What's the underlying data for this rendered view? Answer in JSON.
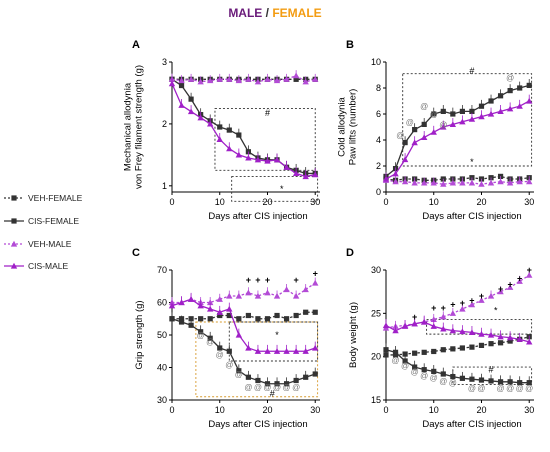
{
  "header": {
    "male": "MALE",
    "slash": "/",
    "female": "FEMALE"
  },
  "legend": [
    {
      "key": "veh_female",
      "label": "VEH-FEMALE",
      "color": "#333333",
      "marker": "square",
      "dashed": true
    },
    {
      "key": "cis_female",
      "label": "CIS-FEMALE",
      "color": "#333333",
      "marker": "square",
      "dashed": false
    },
    {
      "key": "veh_male",
      "label": "VEH-MALE",
      "color": "#b34bd6",
      "marker": "triangle",
      "dashed": true
    },
    {
      "key": "cis_male",
      "label": "CIS-MALE",
      "color": "#a020c8",
      "marker": "triangle",
      "dashed": false
    }
  ],
  "colors": {
    "female": "#333333",
    "male_veh": "#b34bd6",
    "male_cis": "#a020c8",
    "box_female": "#d79b2e"
  },
  "chart_data": [
    {
      "panel": "A",
      "type": "line",
      "ylabel": "Mechanical allodynia\nvon Frey filament strength (g)",
      "xlabel": "Days after CIS injection",
      "xlim": [
        0,
        31
      ],
      "ylim": [
        0.9,
        3.0
      ],
      "xticks": [
        0,
        10,
        20,
        30
      ],
      "yticks": [
        1,
        2,
        3
      ],
      "series": [
        {
          "key": "veh_female",
          "x": [
            0,
            2,
            4,
            6,
            8,
            10,
            12,
            14,
            16,
            18,
            20,
            22,
            24,
            26,
            28,
            30
          ],
          "values": [
            2.72,
            2.72,
            2.72,
            2.72,
            2.72,
            2.72,
            2.72,
            2.72,
            2.72,
            2.72,
            2.72,
            2.72,
            2.72,
            2.72,
            2.72,
            2.72
          ]
        },
        {
          "key": "cis_female",
          "x": [
            0,
            2,
            4,
            6,
            8,
            10,
            12,
            14,
            16,
            18,
            20,
            22,
            24,
            26,
            28,
            30
          ],
          "values": [
            2.72,
            2.62,
            2.4,
            2.15,
            2.05,
            1.95,
            1.9,
            1.82,
            1.55,
            1.45,
            1.42,
            1.42,
            1.3,
            1.25,
            1.2,
            1.2
          ]
        },
        {
          "key": "veh_male",
          "x": [
            0,
            2,
            4,
            6,
            8,
            10,
            12,
            14,
            16,
            18,
            20,
            22,
            24,
            26,
            28,
            30
          ],
          "values": [
            2.72,
            2.7,
            2.72,
            2.68,
            2.7,
            2.72,
            2.72,
            2.7,
            2.72,
            2.68,
            2.72,
            2.7,
            2.72,
            2.78,
            2.68,
            2.72
          ]
        },
        {
          "key": "cis_male",
          "x": [
            0,
            2,
            4,
            6,
            8,
            10,
            12,
            14,
            16,
            18,
            20,
            22,
            24,
            26,
            28,
            30
          ],
          "values": [
            2.65,
            2.3,
            2.2,
            2.1,
            2.0,
            1.75,
            1.6,
            1.5,
            1.45,
            1.42,
            1.4,
            1.42,
            1.3,
            1.2,
            1.15,
            1.18
          ]
        }
      ],
      "annotations": [
        {
          "text": "#",
          "x": 20,
          "y": 2.18
        },
        {
          "text": "*",
          "x": 23,
          "y": 0.95
        }
      ],
      "boxes": [
        {
          "x": [
            9,
            30
          ],
          "y": [
            1.25,
            2.25
          ]
        },
        {
          "x": [
            12.5,
            30.5
          ],
          "y": [
            0.75,
            1.15
          ]
        }
      ]
    },
    {
      "panel": "B",
      "type": "line",
      "ylabel": "Cold allodynia\nPaw lifts (number)",
      "xlabel": "Days after CIS injection",
      "xlim": [
        0,
        31
      ],
      "ylim": [
        0,
        10
      ],
      "xticks": [
        0,
        10,
        20,
        30
      ],
      "yticks": [
        0,
        2,
        4,
        6,
        8,
        10
      ],
      "series": [
        {
          "key": "veh_female",
          "x": [
            0,
            2,
            4,
            6,
            8,
            10,
            12,
            14,
            16,
            18,
            20,
            22,
            24,
            26,
            28,
            30
          ],
          "values": [
            1.0,
            0.9,
            1.0,
            1.0,
            0.9,
            0.9,
            1.0,
            1.0,
            1.0,
            1.1,
            1.0,
            1.1,
            1.2,
            1.0,
            1.0,
            1.1
          ]
        },
        {
          "key": "cis_female",
          "x": [
            0,
            2,
            4,
            6,
            8,
            10,
            12,
            14,
            16,
            18,
            20,
            22,
            24,
            26,
            28,
            30
          ],
          "values": [
            1.2,
            1.8,
            3.8,
            4.8,
            5.2,
            6.0,
            6.2,
            6.0,
            6.2,
            6.2,
            6.6,
            7.0,
            7.4,
            7.8,
            8.0,
            8.2
          ]
        },
        {
          "key": "veh_male",
          "x": [
            0,
            2,
            4,
            6,
            8,
            10,
            12,
            14,
            16,
            18,
            20,
            22,
            24,
            26,
            28,
            30
          ],
          "values": [
            0.9,
            0.8,
            0.8,
            0.7,
            0.7,
            0.7,
            0.6,
            0.7,
            0.7,
            0.7,
            0.6,
            0.7,
            0.8,
            0.7,
            0.8,
            0.8
          ]
        },
        {
          "key": "cis_male",
          "x": [
            0,
            2,
            4,
            6,
            8,
            10,
            12,
            14,
            16,
            18,
            20,
            22,
            24,
            26,
            28,
            30
          ],
          "values": [
            1.0,
            1.4,
            2.5,
            3.8,
            4.2,
            4.6,
            5.0,
            5.2,
            5.4,
            5.6,
            5.8,
            6.0,
            6.2,
            6.4,
            6.6,
            7.0
          ]
        }
      ],
      "annotations": [
        {
          "text": "#",
          "x": 18,
          "y": 9.3
        },
        {
          "text": "*",
          "x": 18,
          "y": 2.3
        },
        {
          "text": "@",
          "x": 3,
          "y": 4.4
        },
        {
          "text": "@",
          "x": 5,
          "y": 5.4
        },
        {
          "text": "@",
          "x": 8,
          "y": 6.6
        },
        {
          "text": "@",
          "x": 10,
          "y": 6.0
        },
        {
          "text": "@",
          "x": 12,
          "y": 5.2
        },
        {
          "text": "@",
          "x": 26,
          "y": 8.8
        }
      ],
      "boxes": [
        {
          "x": [
            3.5,
            30.5
          ],
          "y": [
            2.0,
            9.1
          ]
        }
      ]
    },
    {
      "panel": "C",
      "type": "line",
      "ylabel": "Grip strength (g)",
      "xlabel": "Days after CIS injection",
      "xlim": [
        0,
        31
      ],
      "ylim": [
        30,
        70
      ],
      "xticks": [
        0,
        10,
        20,
        30
      ],
      "yticks": [
        30,
        40,
        50,
        60,
        70
      ],
      "series": [
        {
          "key": "veh_female",
          "x": [
            0,
            2,
            4,
            6,
            8,
            10,
            12,
            14,
            16,
            18,
            20,
            22,
            24,
            26,
            28,
            30
          ],
          "values": [
            55,
            55,
            55,
            55,
            55,
            56,
            56,
            55,
            56,
            55,
            55,
            56,
            55,
            56,
            57,
            57
          ]
        },
        {
          "key": "cis_female",
          "x": [
            0,
            2,
            4,
            6,
            8,
            10,
            12,
            14,
            16,
            18,
            20,
            22,
            24,
            26,
            28,
            30
          ],
          "values": [
            55,
            54,
            53,
            51,
            49,
            46,
            45,
            39,
            37,
            36,
            35,
            35,
            35,
            36,
            37,
            38
          ]
        },
        {
          "key": "veh_male",
          "x": [
            0,
            2,
            4,
            6,
            8,
            10,
            12,
            14,
            16,
            18,
            20,
            22,
            24,
            26,
            28,
            30
          ],
          "values": [
            60,
            60,
            61,
            60,
            60,
            61,
            62,
            62,
            63,
            62,
            63,
            62,
            64,
            62,
            64,
            66
          ]
        },
        {
          "key": "cis_male",
          "x": [
            0,
            2,
            4,
            6,
            8,
            10,
            12,
            14,
            16,
            18,
            20,
            22,
            24,
            26,
            28,
            30
          ],
          "values": [
            59,
            60,
            61,
            59,
            58,
            57,
            58,
            50,
            46,
            45,
            45,
            45,
            45,
            45,
            45,
            46
          ]
        }
      ],
      "annotations": [
        {
          "text": "*",
          "x": 22,
          "y": 50
        },
        {
          "text": "#",
          "x": 21,
          "y": 32
        },
        {
          "text": "+",
          "x": 16,
          "y": 67
        },
        {
          "text": "+",
          "x": 18,
          "y": 67
        },
        {
          "text": "+",
          "x": 20,
          "y": 67
        },
        {
          "text": "+",
          "x": 26,
          "y": 67
        },
        {
          "text": "+",
          "x": 30,
          "y": 69
        },
        {
          "text": "@",
          "x": 6,
          "y": 50
        },
        {
          "text": "@",
          "x": 8,
          "y": 48
        },
        {
          "text": "@",
          "x": 10,
          "y": 44
        },
        {
          "text": "@",
          "x": 12,
          "y": 41
        },
        {
          "text": "@",
          "x": 14,
          "y": 38
        },
        {
          "text": "@",
          "x": 16,
          "y": 34
        },
        {
          "text": "@",
          "x": 18,
          "y": 34
        },
        {
          "text": "@",
          "x": 20,
          "y": 34
        },
        {
          "text": "@",
          "x": 22,
          "y": 34
        },
        {
          "text": "@",
          "x": 24,
          "y": 34
        },
        {
          "text": "@",
          "x": 26,
          "y": 34
        }
      ],
      "boxes": [
        {
          "x": [
            5,
            30.5
          ],
          "y": [
            31,
            54
          ],
          "color_key": "box_female"
        },
        {
          "x": [
            12,
            30.5
          ],
          "y": [
            42,
            54
          ]
        }
      ]
    },
    {
      "panel": "D",
      "type": "line",
      "ylabel": "Body weight (g)",
      "xlabel": "Days after CIS injection",
      "xlim": [
        0,
        31
      ],
      "ylim": [
        15,
        30
      ],
      "xticks": [
        0,
        10,
        20,
        30
      ],
      "yticks": [
        15,
        20,
        25,
        30
      ],
      "series": [
        {
          "key": "veh_female",
          "x": [
            0,
            2,
            4,
            6,
            8,
            10,
            12,
            14,
            16,
            18,
            20,
            22,
            24,
            26,
            28,
            30
          ],
          "values": [
            20.2,
            20.2,
            20.3,
            20.4,
            20.5,
            20.6,
            20.8,
            20.9,
            21.0,
            21.1,
            21.3,
            21.5,
            21.6,
            21.8,
            22.0,
            22.3
          ]
        },
        {
          "key": "cis_female",
          "x": [
            0,
            2,
            4,
            6,
            8,
            10,
            12,
            14,
            16,
            18,
            20,
            22,
            24,
            26,
            28,
            30
          ],
          "values": [
            20.8,
            20.5,
            19.5,
            18.8,
            18.5,
            18.3,
            18.0,
            17.7,
            17.5,
            17.4,
            17.3,
            17.2,
            17.1,
            17.1,
            17.0,
            17.0
          ]
        },
        {
          "key": "veh_male",
          "x": [
            0,
            2,
            4,
            6,
            8,
            10,
            12,
            14,
            16,
            18,
            20,
            22,
            24,
            26,
            28,
            30
          ],
          "values": [
            23.3,
            23.5,
            23.6,
            23.8,
            24.0,
            24.3,
            24.6,
            25.0,
            25.5,
            26.0,
            26.5,
            27.0,
            27.5,
            28.0,
            28.7,
            29.4
          ]
        },
        {
          "key": "cis_male",
          "x": [
            0,
            2,
            4,
            6,
            8,
            10,
            12,
            14,
            16,
            18,
            20,
            22,
            24,
            26,
            28,
            30
          ],
          "values": [
            23.6,
            23.0,
            23.5,
            23.8,
            24.0,
            23.5,
            23.2,
            23.0,
            22.9,
            22.8,
            22.6,
            22.5,
            22.3,
            22.2,
            22.0,
            21.7
          ]
        }
      ],
      "annotations": [
        {
          "text": "*",
          "x": 23,
          "y": 25.3
        },
        {
          "text": "#",
          "x": 22,
          "y": 18.5
        },
        {
          "text": "+",
          "x": 6,
          "y": 24.6
        },
        {
          "text": "+",
          "x": 10,
          "y": 25.6
        },
        {
          "text": "+",
          "x": 12,
          "y": 25.6
        },
        {
          "text": "+",
          "x": 14,
          "y": 26.0
        },
        {
          "text": "+",
          "x": 16,
          "y": 26.2
        },
        {
          "text": "+",
          "x": 18,
          "y": 26.5
        },
        {
          "text": "+",
          "x": 20,
          "y": 27.0
        },
        {
          "text": "+",
          "x": 24,
          "y": 27.8
        },
        {
          "text": "+",
          "x": 26,
          "y": 28.3
        },
        {
          "text": "+",
          "x": 28,
          "y": 29.0
        },
        {
          "text": "+",
          "x": 30,
          "y": 30.0
        },
        {
          "text": "@",
          "x": 2,
          "y": 19.6
        },
        {
          "text": "@",
          "x": 4,
          "y": 19.0
        },
        {
          "text": "@",
          "x": 6,
          "y": 18.3
        },
        {
          "text": "@",
          "x": 8,
          "y": 17.8
        },
        {
          "text": "@",
          "x": 10,
          "y": 17.6
        },
        {
          "text": "@",
          "x": 12,
          "y": 17.2
        },
        {
          "text": "@",
          "x": 14,
          "y": 17.0
        },
        {
          "text": "@",
          "x": 18,
          "y": 16.4
        },
        {
          "text": "@",
          "x": 20,
          "y": 16.4
        },
        {
          "text": "@",
          "x": 24,
          "y": 16.4
        },
        {
          "text": "@",
          "x": 26,
          "y": 16.4
        },
        {
          "text": "@",
          "x": 28,
          "y": 16.4
        },
        {
          "text": "@",
          "x": 30,
          "y": 16.4
        }
      ],
      "boxes": [
        {
          "x": [
            8.5,
            30.5
          ],
          "y": [
            22.6,
            24.3
          ]
        },
        {
          "x": [
            14,
            30.5
          ],
          "y": [
            16.8,
            18.8
          ]
        }
      ]
    }
  ]
}
